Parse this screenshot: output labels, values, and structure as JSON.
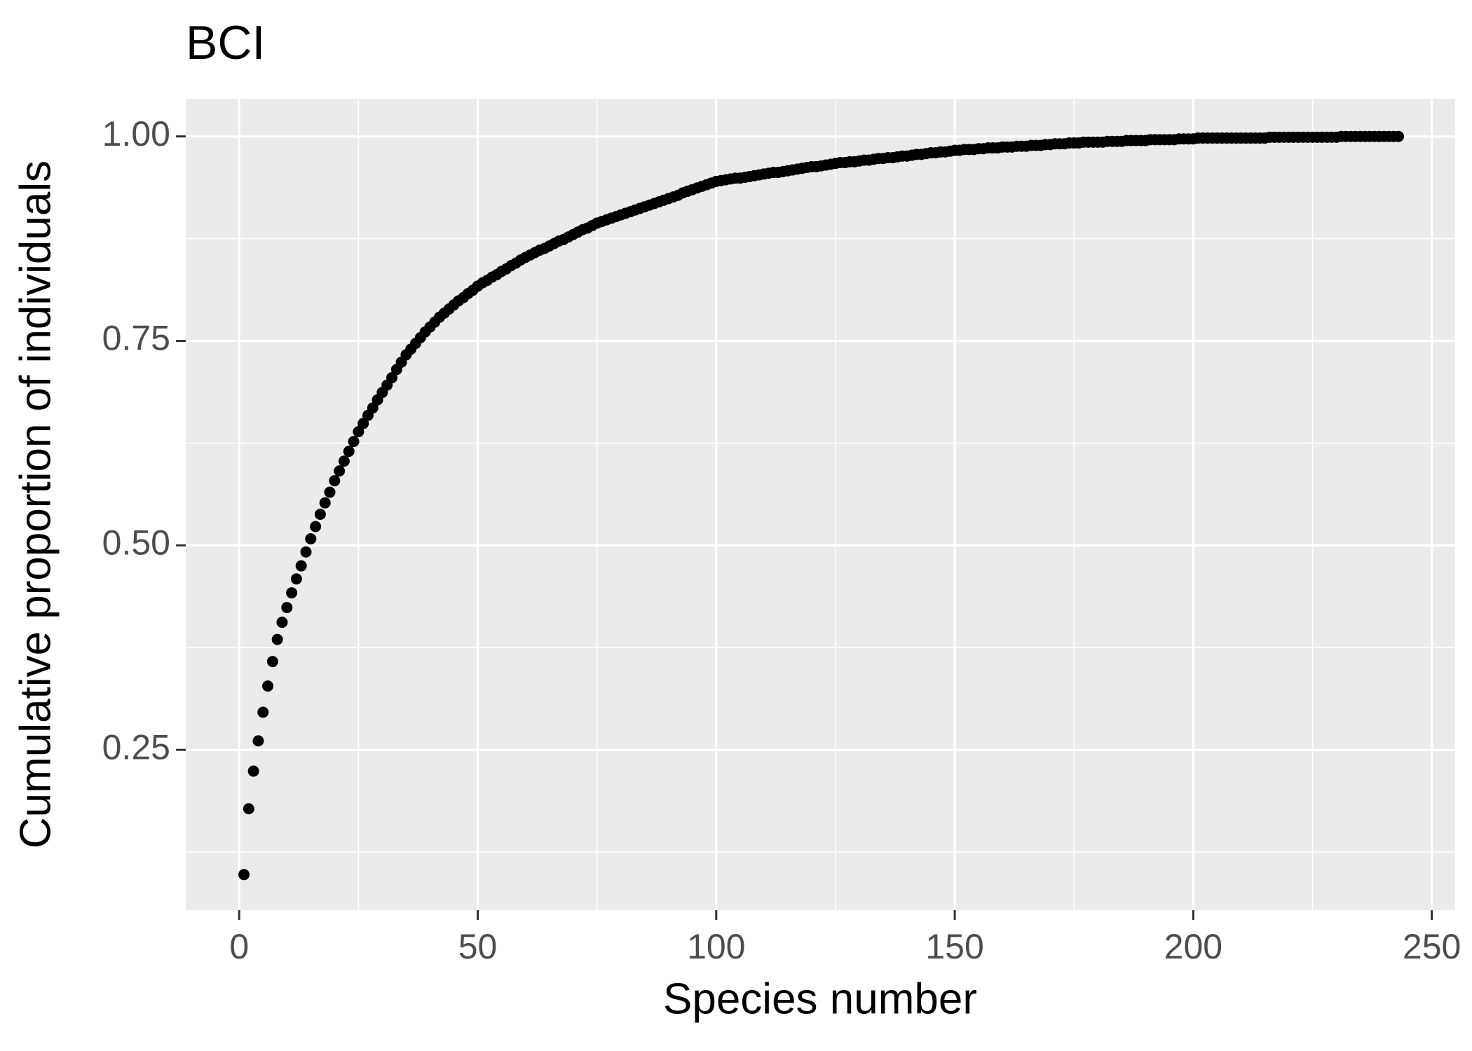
{
  "chart_data": {
    "type": "scatter",
    "title": "BCI",
    "x_label": "Species number",
    "y_label": "Cumulative proportion of individuals",
    "color": "#000000",
    "grid": true,
    "xlim": [
      -11.2,
      254.9
    ],
    "ylim": [
      0.054,
      1.046
    ],
    "xticks": [
      0,
      50,
      100,
      150,
      200,
      250
    ],
    "yticks": [
      {
        "value": 0.25,
        "label": "0.25"
      },
      {
        "value": 0.5,
        "label": "0.50"
      },
      {
        "value": 0.75,
        "label": "0.75"
      },
      {
        "value": 1,
        "label": "1.00"
      }
    ],
    "xminorticks": [
      25,
      75,
      125,
      175,
      225
    ],
    "yminorticks": [
      0.125,
      0.375,
      0.625,
      0.875
    ],
    "x": [
      1,
      2,
      3,
      4,
      5,
      6,
      7,
      8,
      9,
      10,
      11,
      12,
      13,
      14,
      15,
      16,
      17,
      18,
      19,
      20,
      21,
      22,
      23,
      24,
      25,
      26,
      27,
      28,
      29,
      30,
      31,
      32,
      33,
      34,
      35,
      36,
      37,
      38,
      39,
      40,
      41,
      42,
      43,
      44,
      45,
      46,
      47,
      48,
      49,
      50,
      51,
      52,
      53,
      54,
      55,
      56,
      57,
      58,
      59,
      60,
      61,
      62,
      63,
      64,
      65,
      66,
      67,
      68,
      69,
      70,
      71,
      72,
      73,
      74,
      75,
      76,
      77,
      78,
      79,
      80,
      81,
      82,
      83,
      84,
      85,
      86,
      87,
      88,
      89,
      90,
      91,
      92,
      93,
      94,
      95,
      96,
      97,
      98,
      99,
      100,
      101,
      102,
      103,
      104,
      105,
      106,
      107,
      108,
      109,
      110,
      111,
      112,
      113,
      114,
      115,
      116,
      117,
      118,
      119,
      120,
      121,
      122,
      123,
      124,
      125,
      126,
      127,
      128,
      129,
      130,
      131,
      132,
      133,
      134,
      135,
      136,
      137,
      138,
      139,
      140,
      141,
      142,
      143,
      144,
      145,
      146,
      147,
      148,
      149,
      150,
      151,
      152,
      153,
      154,
      155,
      156,
      157,
      158,
      159,
      160,
      161,
      162,
      163,
      164,
      165,
      166,
      167,
      168,
      169,
      170,
      171,
      172,
      173,
      174,
      175,
      176,
      177,
      178,
      179,
      180,
      181,
      182,
      183,
      184,
      185,
      186,
      187,
      188,
      189,
      190,
      191,
      192,
      193,
      194,
      195,
      196,
      197,
      198,
      199,
      200,
      201,
      202,
      203,
      204,
      205,
      206,
      207,
      208,
      209,
      210,
      211,
      212,
      213,
      214,
      215,
      216,
      217,
      218,
      219,
      220,
      221,
      222,
      223,
      224,
      225,
      226,
      227,
      228,
      229,
      230,
      231,
      232,
      233,
      234,
      235,
      236,
      237,
      238,
      239,
      240,
      241,
      242,
      243
    ],
    "values": [
      0.0975,
      0.178,
      0.224,
      0.261,
      0.296,
      0.328,
      0.358,
      0.385,
      0.406,
      0.424,
      0.442,
      0.459,
      0.475,
      0.492,
      0.508,
      0.523,
      0.538,
      0.552,
      0.565,
      0.579,
      0.591,
      0.603,
      0.615,
      0.627,
      0.639,
      0.649,
      0.659,
      0.668,
      0.678,
      0.687,
      0.696,
      0.705,
      0.715,
      0.724,
      0.733,
      0.74,
      0.747,
      0.754,
      0.761,
      0.767,
      0.773,
      0.779,
      0.784,
      0.789,
      0.794,
      0.799,
      0.803,
      0.808,
      0.812,
      0.817,
      0.821,
      0.824,
      0.828,
      0.831,
      0.835,
      0.838,
      0.842,
      0.845,
      0.849,
      0.852,
      0.855,
      0.858,
      0.861,
      0.863,
      0.866,
      0.869,
      0.872,
      0.874,
      0.877,
      0.88,
      0.883,
      0.886,
      0.888,
      0.891,
      0.894,
      0.896,
      0.898,
      0.9,
      0.902,
      0.904,
      0.906,
      0.908,
      0.91,
      0.912,
      0.914,
      0.916,
      0.918,
      0.92,
      0.922,
      0.924,
      0.926,
      0.928,
      0.931,
      0.933,
      0.935,
      0.937,
      0.939,
      0.941,
      0.943,
      0.945,
      0.946,
      0.947,
      0.948,
      0.949,
      0.949,
      0.95,
      0.951,
      0.952,
      0.953,
      0.954,
      0.955,
      0.956,
      0.956,
      0.957,
      0.958,
      0.959,
      0.96,
      0.961,
      0.962,
      0.963,
      0.963,
      0.964,
      0.965,
      0.966,
      0.967,
      0.968,
      0.968,
      0.969,
      0.969,
      0.97,
      0.971,
      0.971,
      0.972,
      0.973,
      0.973,
      0.974,
      0.974,
      0.975,
      0.976,
      0.976,
      0.977,
      0.978,
      0.978,
      0.979,
      0.98,
      0.98,
      0.981,
      0.981,
      0.982,
      0.983,
      0.983,
      0.984,
      0.984,
      0.984,
      0.985,
      0.985,
      0.986,
      0.986,
      0.986,
      0.987,
      0.987,
      0.987,
      0.988,
      0.988,
      0.988,
      0.989,
      0.989,
      0.989,
      0.99,
      0.99,
      0.991,
      0.991,
      0.991,
      0.992,
      0.992,
      0.992,
      0.993,
      0.993,
      0.993,
      0.993,
      0.993,
      0.994,
      0.994,
      0.994,
      0.994,
      0.995,
      0.995,
      0.995,
      0.995,
      0.995,
      0.996,
      0.996,
      0.996,
      0.996,
      0.996,
      0.996,
      0.997,
      0.997,
      0.997,
      0.997,
      0.998,
      0.998,
      0.998,
      0.998,
      0.998,
      0.998,
      0.998,
      0.998,
      0.998,
      0.998,
      0.998,
      0.998,
      0.998,
      0.998,
      0.998,
      0.999,
      0.999,
      0.999,
      0.999,
      0.999,
      0.999,
      0.999,
      0.999,
      0.999,
      0.999,
      0.999,
      0.999,
      0.999,
      0.999,
      0.999,
      1,
      1,
      1,
      1,
      1,
      1,
      1,
      1,
      1,
      1,
      1,
      1,
      1
    ]
  }
}
